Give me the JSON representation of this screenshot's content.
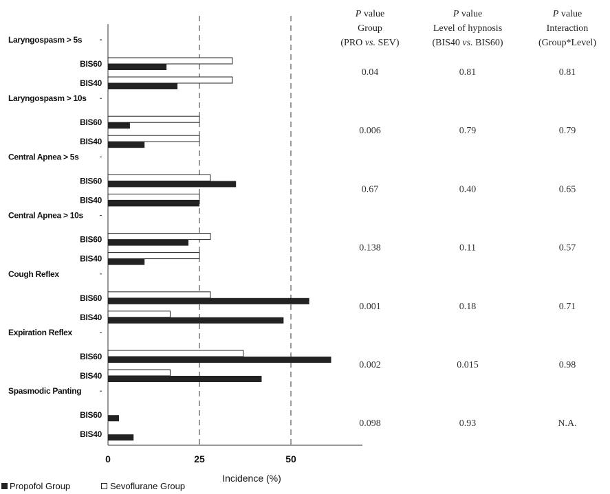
{
  "chart_data": {
    "type": "bar",
    "orientation": "horizontal",
    "xlabel": "Incidence (%)",
    "xlim": [
      0,
      70
    ],
    "xticks": [
      0,
      25,
      50
    ],
    "grid": "dashed vertical lines at 25 and 50",
    "legend_position": "bottom-left",
    "series": [
      {
        "name": "Propofol Group",
        "color": "#222222",
        "fill": "solid"
      },
      {
        "name": "Sevoflurane Group",
        "color": "#ffffff",
        "fill": "outline"
      }
    ],
    "categories": [
      {
        "label": "Laryngospasm > 5s",
        "rows": [
          {
            "level": "BIS60",
            "propofol": 16,
            "sevoflurane": 34
          },
          {
            "level": "BIS40",
            "propofol": 19,
            "sevoflurane": 34
          }
        ]
      },
      {
        "label": "Laryngospasm > 10s",
        "rows": [
          {
            "level": "BIS60",
            "propofol": 6,
            "sevoflurane": 25
          },
          {
            "level": "BIS40",
            "propofol": 10,
            "sevoflurane": 25
          }
        ]
      },
      {
        "label": "Central Apnea > 5s",
        "rows": [
          {
            "level": "BIS60",
            "propofol": 35,
            "sevoflurane": 28
          },
          {
            "level": "BIS40",
            "propofol": 25,
            "sevoflurane": 25
          }
        ]
      },
      {
        "label": "Central Apnea > 10s",
        "rows": [
          {
            "level": "BIS60",
            "propofol": 22,
            "sevoflurane": 28
          },
          {
            "level": "BIS40",
            "propofol": 10,
            "sevoflurane": 25
          }
        ]
      },
      {
        "label": "Cough Reflex",
        "rows": [
          {
            "level": "BIS60",
            "propofol": 55,
            "sevoflurane": 28
          },
          {
            "level": "BIS40",
            "propofol": 48,
            "sevoflurane": 17
          }
        ]
      },
      {
        "label": "Expiration Reflex",
        "rows": [
          {
            "level": "BIS60",
            "propofol": 61,
            "sevoflurane": 37
          },
          {
            "level": "BIS40",
            "propofol": 42,
            "sevoflurane": 17
          }
        ]
      },
      {
        "label": "Spasmodic Panting",
        "rows": [
          {
            "level": "BIS60",
            "propofol": 3,
            "sevoflurane": 0
          },
          {
            "level": "BIS40",
            "propofol": 7,
            "sevoflurane": 0
          }
        ]
      }
    ],
    "pvalue_table": {
      "headers": [
        {
          "line1": "P value",
          "line2": "Group",
          "line3_pre": "(PRO ",
          "line3_ital": "vs.",
          "line3_post": " SEV)"
        },
        {
          "line1": "P value",
          "line2": "Level of hypnosis",
          "line3_pre": "(BIS40 ",
          "line3_ital": "vs.",
          "line3_post": " BIS60)"
        },
        {
          "line1": "P value",
          "line2": "Interaction",
          "line3_pre": "(Group*Level)",
          "line3_ital": "",
          "line3_post": ""
        }
      ],
      "rows": [
        [
          "0.04",
          "0.81",
          "0.81"
        ],
        [
          "0.006",
          "0.79",
          "0.79"
        ],
        [
          "0.67",
          "0.40",
          "0.65"
        ],
        [
          "0.138",
          "0.11",
          "0.57"
        ],
        [
          "0.001",
          "0.18",
          "0.71"
        ],
        [
          "0.002",
          "0.015",
          "0.98"
        ],
        [
          "0.098",
          "0.93",
          "N.A."
        ]
      ]
    }
  }
}
